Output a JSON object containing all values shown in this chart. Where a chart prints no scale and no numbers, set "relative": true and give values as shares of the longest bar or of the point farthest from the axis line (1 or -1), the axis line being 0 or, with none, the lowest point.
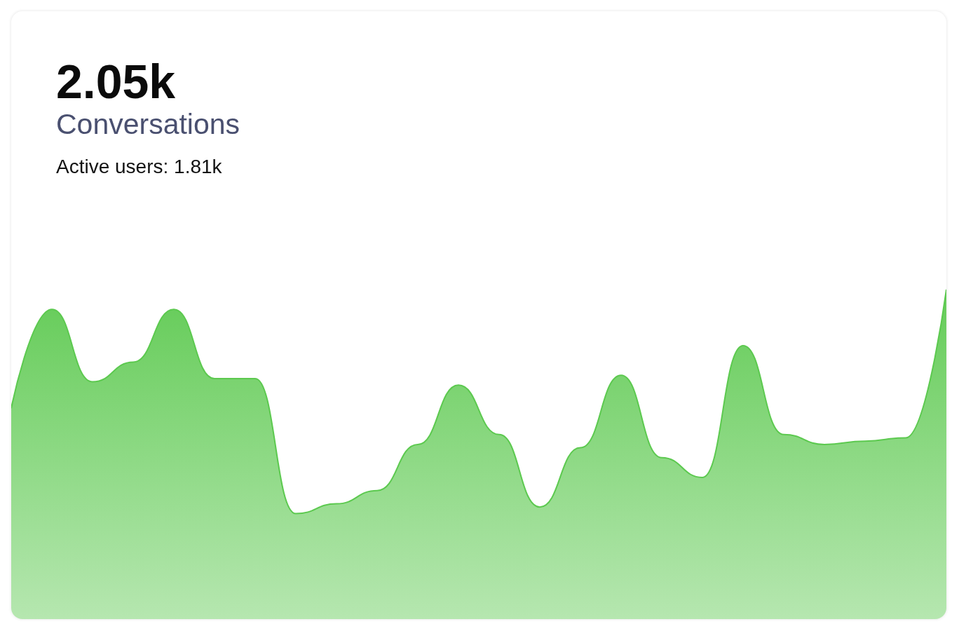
{
  "chart_data": {
    "type": "area",
    "title": "2.05k",
    "subtitle": "Conversations",
    "annotations": [
      "Active users: 1.81k"
    ],
    "relative": true,
    "marker": "none",
    "categories": [
      null,
      null,
      null,
      null,
      null,
      null,
      null,
      null,
      null,
      null,
      null,
      null,
      null,
      null,
      null,
      null,
      null,
      null,
      null,
      null,
      null,
      null,
      null,
      null
    ],
    "series": [
      {
        "color": "#5cc94f",
        "values": [
          0.64,
          0.94,
          0.72,
          0.78,
          0.94,
          0.73,
          0.73,
          0.32,
          0.35,
          0.39,
          0.53,
          0.71,
          0.56,
          0.34,
          0.52,
          0.74,
          0.49,
          0.43,
          0.83,
          0.56,
          0.53,
          0.54,
          0.55,
          1
        ]
      }
    ]
  }
}
